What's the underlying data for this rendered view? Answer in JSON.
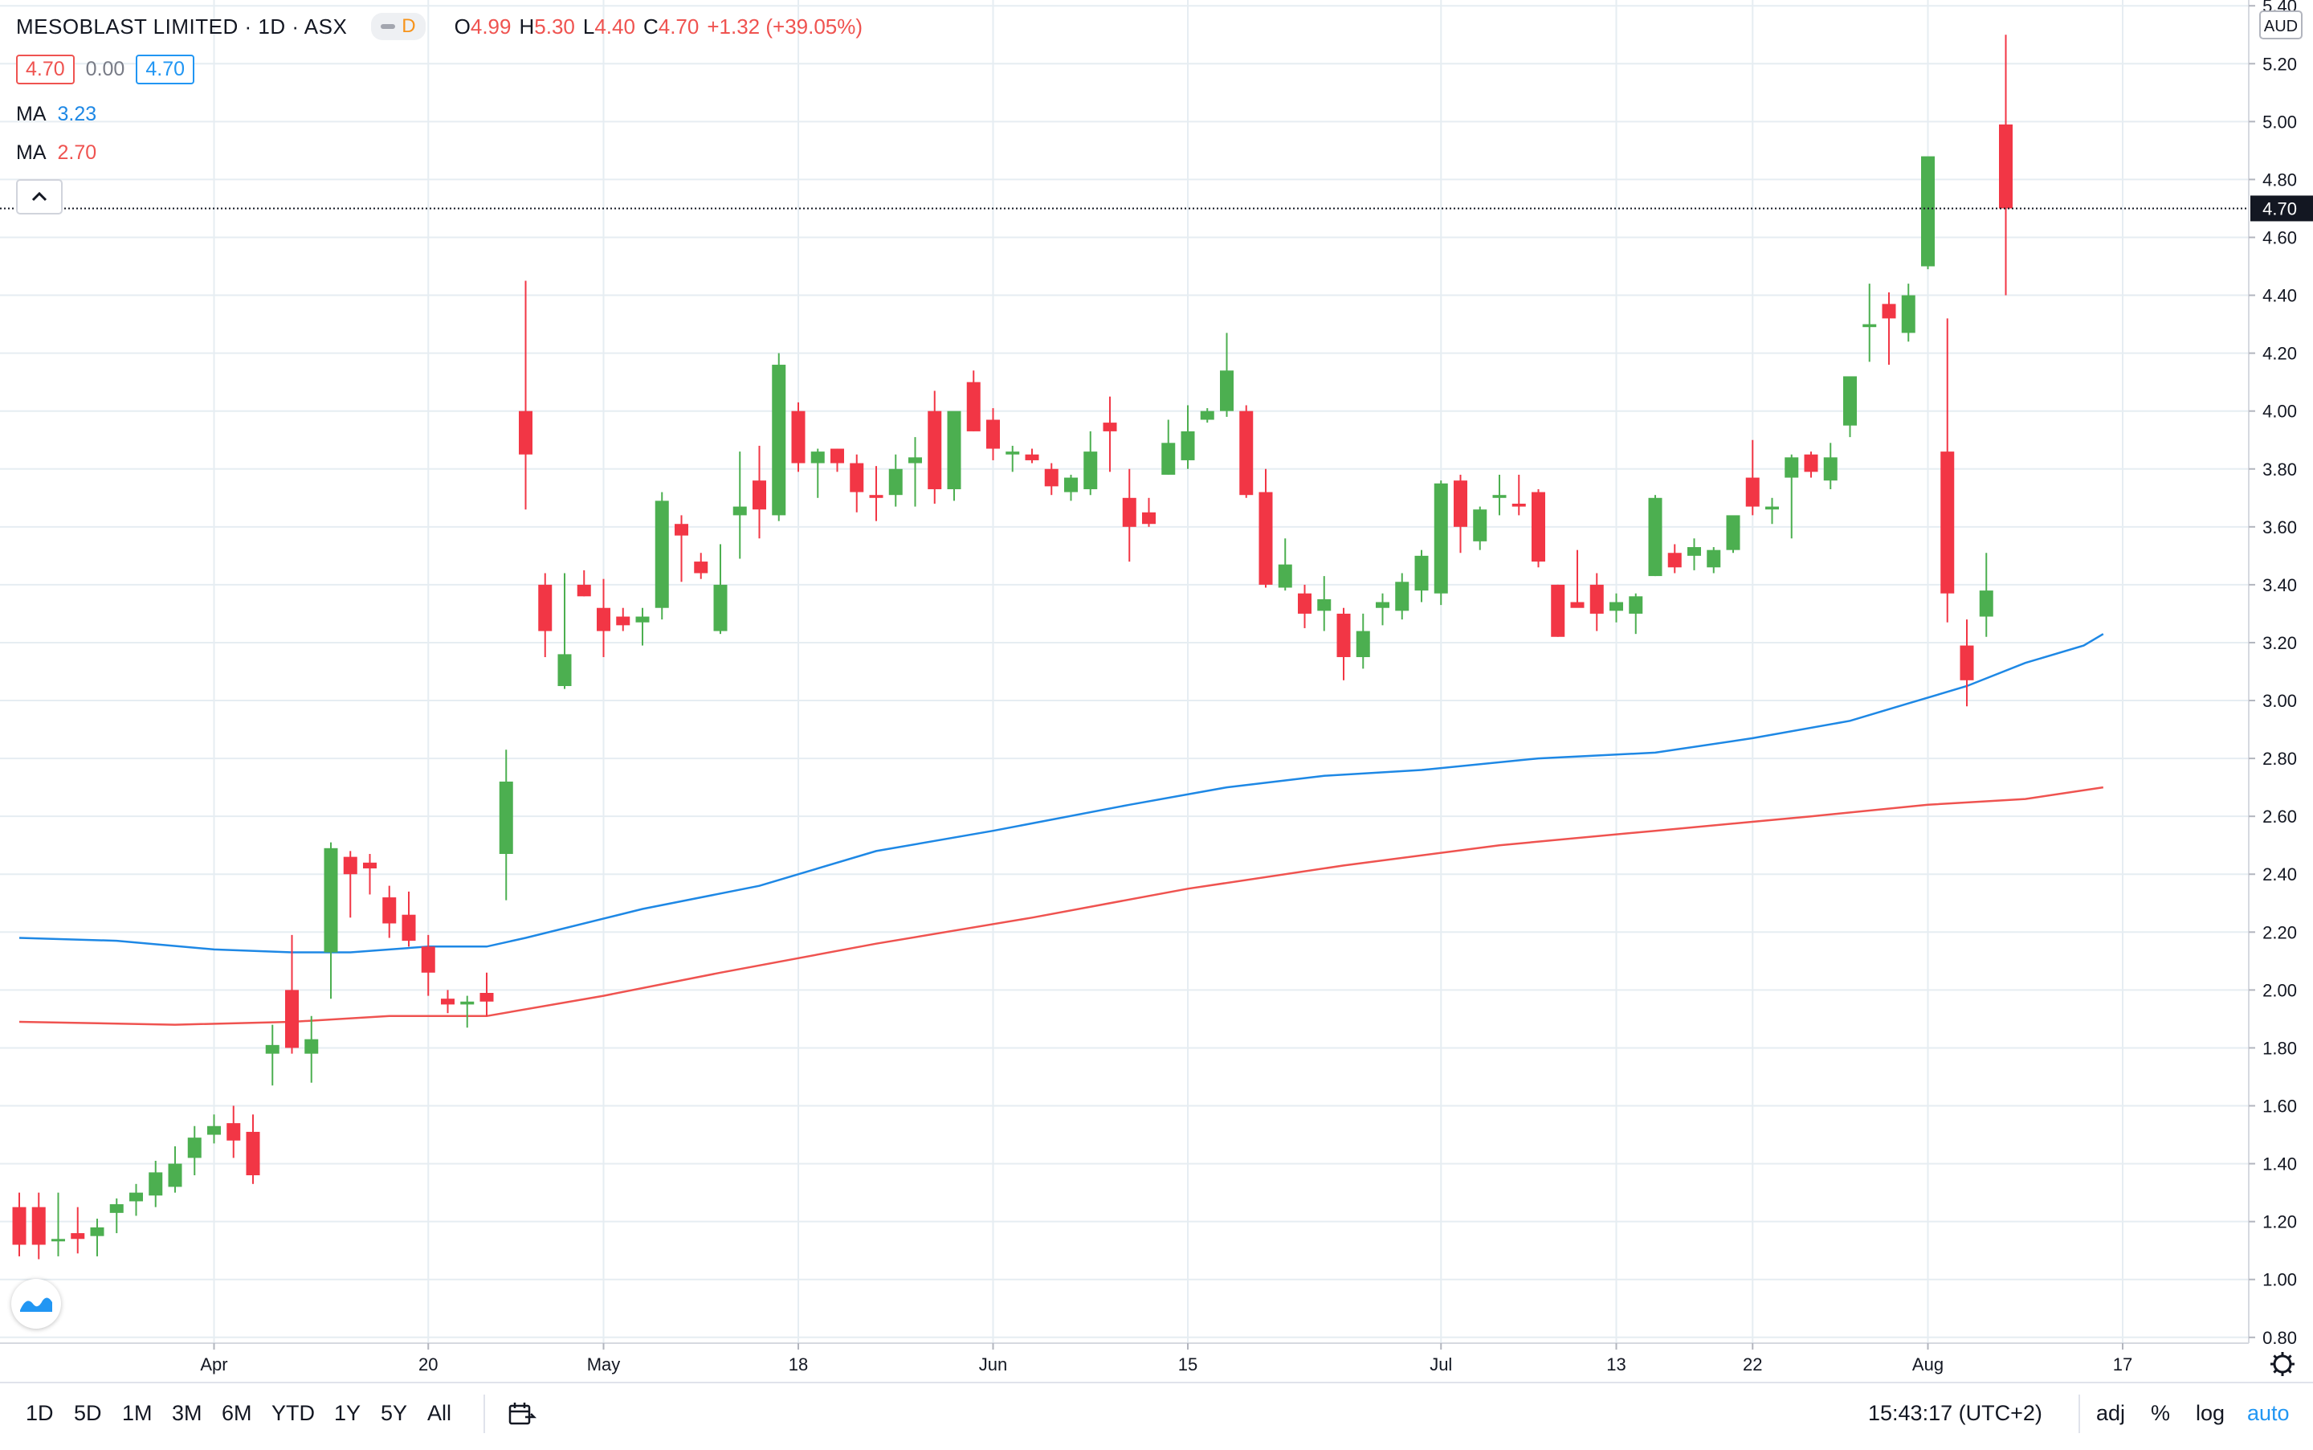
{
  "header": {
    "symbol": "MESOBLAST LIMITED · 1D · ASX",
    "badge": "D",
    "o_label": "O",
    "o_value": "4.99",
    "h_label": "H",
    "h_value": "5.30",
    "l_label": "L",
    "l_value": "4.40",
    "c_label": "C",
    "c_value": "4.70",
    "change": "+1.32 (+39.05%)",
    "bid": "4.70",
    "spread": "0.00",
    "ask": "4.70"
  },
  "indicators": [
    {
      "label": "MA",
      "value": "3.23",
      "color": "#2962ff"
    },
    {
      "label": "MA",
      "value": "2.70",
      "color": "#ef5350"
    }
  ],
  "colors": {
    "up": "#4caf50",
    "down": "#f23645",
    "ma_fast": "#1e88e5",
    "ma_slow": "#ef5350",
    "grid": "#e6edf2"
  },
  "chart_data": {
    "type": "candlestick",
    "currency": "AUD",
    "y_ticks": [
      "0.80",
      "1.00",
      "1.20",
      "1.40",
      "1.60",
      "1.80",
      "2.00",
      "2.20",
      "2.40",
      "2.60",
      "2.80",
      "3.00",
      "3.20",
      "3.40",
      "3.60",
      "3.80",
      "4.00",
      "4.20",
      "4.40",
      "4.60",
      "4.80",
      "5.00",
      "5.20",
      "5.40"
    ],
    "ylim": [
      0.78,
      5.42
    ],
    "last_price": "4.70",
    "x_ticks": [
      {
        "label": "Apr",
        "index": 10
      },
      {
        "label": "20",
        "index": 21
      },
      {
        "label": "May",
        "index": 30
      },
      {
        "label": "18",
        "index": 40
      },
      {
        "label": "Jun",
        "index": 50
      },
      {
        "label": "15",
        "index": 60
      },
      {
        "label": "Jul",
        "index": 73
      },
      {
        "label": "13",
        "index": 82
      },
      {
        "label": "22",
        "index": 89
      },
      {
        "label": "Aug",
        "index": 98
      },
      {
        "label": "17",
        "index": 108
      }
    ],
    "candles": [
      [
        1.25,
        1.3,
        1.08,
        1.12
      ],
      [
        1.25,
        1.3,
        1.07,
        1.12
      ],
      [
        1.14,
        1.3,
        1.08,
        1.14
      ],
      [
        1.16,
        1.25,
        1.09,
        1.14
      ],
      [
        1.15,
        1.21,
        1.08,
        1.18
      ],
      [
        1.23,
        1.28,
        1.16,
        1.26
      ],
      [
        1.27,
        1.33,
        1.22,
        1.3
      ],
      [
        1.29,
        1.41,
        1.25,
        1.37
      ],
      [
        1.32,
        1.46,
        1.3,
        1.4
      ],
      [
        1.42,
        1.53,
        1.36,
        1.49
      ],
      [
        1.5,
        1.57,
        1.47,
        1.53
      ],
      [
        1.54,
        1.6,
        1.42,
        1.48
      ],
      [
        1.51,
        1.57,
        1.33,
        1.36
      ],
      [
        1.78,
        1.88,
        1.67,
        1.81
      ],
      [
        2.0,
        2.19,
        1.78,
        1.8
      ],
      [
        1.78,
        1.91,
        1.68,
        1.83
      ],
      [
        2.13,
        2.51,
        1.97,
        2.49
      ],
      [
        2.46,
        2.48,
        2.25,
        2.4
      ],
      [
        2.44,
        2.47,
        2.33,
        2.42
      ],
      [
        2.32,
        2.36,
        2.18,
        2.23
      ],
      [
        2.26,
        2.34,
        2.15,
        2.17
      ],
      [
        2.15,
        2.19,
        1.98,
        2.06
      ],
      [
        1.97,
        2.0,
        1.92,
        1.95
      ],
      [
        1.95,
        1.98,
        1.87,
        1.96
      ],
      [
        1.99,
        2.06,
        1.91,
        1.96
      ],
      [
        2.47,
        2.83,
        2.31,
        2.72
      ],
      [
        4.0,
        4.45,
        3.66,
        3.85
      ],
      [
        3.4,
        3.44,
        3.15,
        3.24
      ],
      [
        3.05,
        3.44,
        3.04,
        3.16
      ],
      [
        3.4,
        3.45,
        3.36,
        3.36
      ],
      [
        3.32,
        3.42,
        3.15,
        3.24
      ],
      [
        3.29,
        3.32,
        3.24,
        3.26
      ],
      [
        3.27,
        3.32,
        3.19,
        3.29
      ],
      [
        3.32,
        3.72,
        3.28,
        3.69
      ],
      [
        3.61,
        3.64,
        3.41,
        3.57
      ],
      [
        3.48,
        3.51,
        3.42,
        3.44
      ],
      [
        3.24,
        3.54,
        3.23,
        3.4
      ],
      [
        3.64,
        3.86,
        3.49,
        3.67
      ],
      [
        3.76,
        3.88,
        3.56,
        3.66
      ],
      [
        3.64,
        4.2,
        3.62,
        4.16
      ],
      [
        4.0,
        4.03,
        3.79,
        3.82
      ],
      [
        3.82,
        3.87,
        3.7,
        3.86
      ],
      [
        3.87,
        3.87,
        3.79,
        3.82
      ],
      [
        3.82,
        3.85,
        3.65,
        3.72
      ],
      [
        3.71,
        3.81,
        3.62,
        3.7
      ],
      [
        3.71,
        3.85,
        3.67,
        3.8
      ],
      [
        3.82,
        3.91,
        3.67,
        3.84
      ],
      [
        4.0,
        4.07,
        3.68,
        3.73
      ],
      [
        3.73,
        3.99,
        3.69,
        4.0
      ],
      [
        4.1,
        4.14,
        3.93,
        3.93
      ],
      [
        3.97,
        4.01,
        3.83,
        3.87
      ],
      [
        3.85,
        3.88,
        3.79,
        3.86
      ],
      [
        3.85,
        3.87,
        3.82,
        3.83
      ],
      [
        3.8,
        3.82,
        3.71,
        3.74
      ],
      [
        3.72,
        3.78,
        3.69,
        3.77
      ],
      [
        3.73,
        3.93,
        3.71,
        3.86
      ],
      [
        3.96,
        4.05,
        3.79,
        3.93
      ],
      [
        3.7,
        3.8,
        3.48,
        3.6
      ],
      [
        3.65,
        3.7,
        3.6,
        3.61
      ],
      [
        3.78,
        3.97,
        3.78,
        3.89
      ],
      [
        3.83,
        4.02,
        3.8,
        3.93
      ],
      [
        3.97,
        4.01,
        3.96,
        4.0
      ],
      [
        4.0,
        4.27,
        3.98,
        4.14
      ],
      [
        4.0,
        4.02,
        3.7,
        3.71
      ],
      [
        3.72,
        3.8,
        3.39,
        3.4
      ],
      [
        3.39,
        3.56,
        3.38,
        3.47
      ],
      [
        3.37,
        3.4,
        3.25,
        3.3
      ],
      [
        3.31,
        3.43,
        3.24,
        3.35
      ],
      [
        3.3,
        3.32,
        3.07,
        3.15
      ],
      [
        3.15,
        3.3,
        3.11,
        3.24
      ],
      [
        3.32,
        3.37,
        3.26,
        3.34
      ],
      [
        3.31,
        3.44,
        3.28,
        3.41
      ],
      [
        3.38,
        3.52,
        3.34,
        3.5
      ],
      [
        3.37,
        3.76,
        3.33,
        3.75
      ],
      [
        3.76,
        3.78,
        3.51,
        3.6
      ],
      [
        3.55,
        3.67,
        3.52,
        3.66
      ],
      [
        3.7,
        3.78,
        3.64,
        3.71
      ],
      [
        3.68,
        3.78,
        3.64,
        3.67
      ],
      [
        3.72,
        3.73,
        3.46,
        3.48
      ],
      [
        3.4,
        3.4,
        3.22,
        3.22
      ],
      [
        3.34,
        3.52,
        3.33,
        3.32
      ],
      [
        3.4,
        3.44,
        3.24,
        3.3
      ],
      [
        3.31,
        3.37,
        3.27,
        3.34
      ],
      [
        3.3,
        3.37,
        3.23,
        3.36
      ],
      [
        3.43,
        3.71,
        3.43,
        3.7
      ],
      [
        3.51,
        3.54,
        3.44,
        3.46
      ],
      [
        3.5,
        3.56,
        3.45,
        3.53
      ],
      [
        3.46,
        3.53,
        3.44,
        3.52
      ],
      [
        3.52,
        3.62,
        3.51,
        3.64
      ],
      [
        3.77,
        3.9,
        3.64,
        3.67
      ],
      [
        3.66,
        3.7,
        3.61,
        3.67
      ],
      [
        3.77,
        3.85,
        3.56,
        3.84
      ],
      [
        3.85,
        3.86,
        3.77,
        3.79
      ],
      [
        3.76,
        3.89,
        3.73,
        3.84
      ],
      [
        3.95,
        4.09,
        3.91,
        4.12
      ],
      [
        4.29,
        4.44,
        4.17,
        4.3
      ],
      [
        4.37,
        4.41,
        4.16,
        4.32
      ],
      [
        4.27,
        4.44,
        4.24,
        4.4
      ],
      [
        4.5,
        4.87,
        4.49,
        4.88
      ],
      [
        3.86,
        4.32,
        3.27,
        3.37
      ],
      [
        3.19,
        3.28,
        2.98,
        3.07
      ],
      [
        3.29,
        3.51,
        3.22,
        3.38
      ],
      [
        4.99,
        5.3,
        4.4,
        4.7
      ]
    ],
    "ma_fast": [
      [
        0,
        2.18
      ],
      [
        5,
        2.17
      ],
      [
        10,
        2.14
      ],
      [
        14,
        2.13
      ],
      [
        17,
        2.13
      ],
      [
        21,
        2.15
      ],
      [
        24,
        2.15
      ],
      [
        26,
        2.18
      ],
      [
        32,
        2.28
      ],
      [
        38,
        2.36
      ],
      [
        44,
        2.48
      ],
      [
        50,
        2.55
      ],
      [
        57,
        2.64
      ],
      [
        62,
        2.7
      ],
      [
        67,
        2.74
      ],
      [
        72,
        2.76
      ],
      [
        78,
        2.8
      ],
      [
        84,
        2.82
      ],
      [
        89,
        2.87
      ],
      [
        94,
        2.93
      ],
      [
        97,
        2.99
      ],
      [
        100,
        3.05
      ],
      [
        103,
        3.13
      ],
      [
        106,
        3.19
      ],
      [
        107,
        3.23
      ]
    ],
    "ma_slow": [
      [
        0,
        1.89
      ],
      [
        8,
        1.88
      ],
      [
        14,
        1.89
      ],
      [
        19,
        1.91
      ],
      [
        24,
        1.91
      ],
      [
        30,
        1.98
      ],
      [
        36,
        2.06
      ],
      [
        44,
        2.16
      ],
      [
        52,
        2.25
      ],
      [
        60,
        2.35
      ],
      [
        68,
        2.43
      ],
      [
        76,
        2.5
      ],
      [
        84,
        2.55
      ],
      [
        92,
        2.6
      ],
      [
        98,
        2.64
      ],
      [
        103,
        2.66
      ],
      [
        107,
        2.7
      ]
    ]
  },
  "toolbar": {
    "ranges": [
      "1D",
      "5D",
      "1M",
      "3M",
      "6M",
      "YTD",
      "1Y",
      "5Y",
      "All"
    ],
    "time": "15:43:17 (UTC+2)",
    "adj": "adj",
    "percent": "%",
    "log": "log",
    "auto": "auto"
  }
}
